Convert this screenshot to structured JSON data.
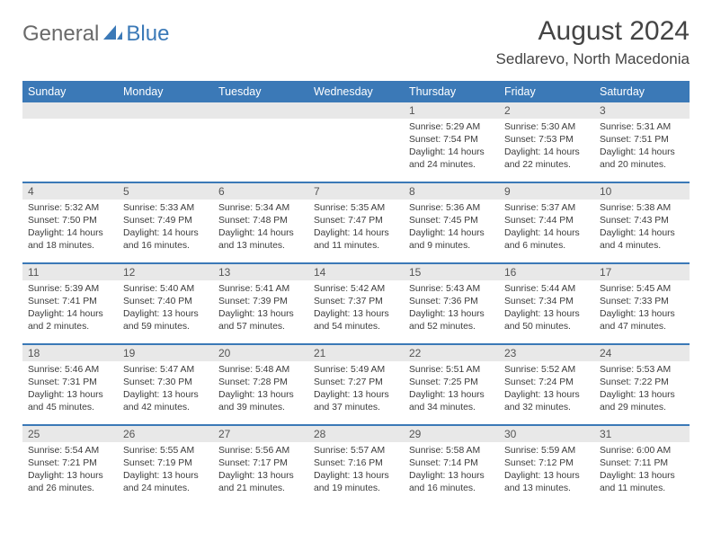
{
  "brand": {
    "part1": "General",
    "part2": "Blue"
  },
  "title": "August 2024",
  "location": "Sedlarevo, North Macedonia",
  "colors": {
    "header_bg": "#3b79b7",
    "header_text": "#ffffff",
    "date_band_bg": "#e8e8e8",
    "text": "#3c3c3c",
    "title_text": "#444444",
    "logo_gray": "#6a6a6a",
    "logo_blue": "#3b79b7"
  },
  "day_names": [
    "Sunday",
    "Monday",
    "Tuesday",
    "Wednesday",
    "Thursday",
    "Friday",
    "Saturday"
  ],
  "weeks": [
    [
      {
        "date": "",
        "sunrise": "",
        "sunset": "",
        "daylight": ""
      },
      {
        "date": "",
        "sunrise": "",
        "sunset": "",
        "daylight": ""
      },
      {
        "date": "",
        "sunrise": "",
        "sunset": "",
        "daylight": ""
      },
      {
        "date": "",
        "sunrise": "",
        "sunset": "",
        "daylight": ""
      },
      {
        "date": "1",
        "sunrise": "Sunrise: 5:29 AM",
        "sunset": "Sunset: 7:54 PM",
        "daylight": "Daylight: 14 hours and 24 minutes."
      },
      {
        "date": "2",
        "sunrise": "Sunrise: 5:30 AM",
        "sunset": "Sunset: 7:53 PM",
        "daylight": "Daylight: 14 hours and 22 minutes."
      },
      {
        "date": "3",
        "sunrise": "Sunrise: 5:31 AM",
        "sunset": "Sunset: 7:51 PM",
        "daylight": "Daylight: 14 hours and 20 minutes."
      }
    ],
    [
      {
        "date": "4",
        "sunrise": "Sunrise: 5:32 AM",
        "sunset": "Sunset: 7:50 PM",
        "daylight": "Daylight: 14 hours and 18 minutes."
      },
      {
        "date": "5",
        "sunrise": "Sunrise: 5:33 AM",
        "sunset": "Sunset: 7:49 PM",
        "daylight": "Daylight: 14 hours and 16 minutes."
      },
      {
        "date": "6",
        "sunrise": "Sunrise: 5:34 AM",
        "sunset": "Sunset: 7:48 PM",
        "daylight": "Daylight: 14 hours and 13 minutes."
      },
      {
        "date": "7",
        "sunrise": "Sunrise: 5:35 AM",
        "sunset": "Sunset: 7:47 PM",
        "daylight": "Daylight: 14 hours and 11 minutes."
      },
      {
        "date": "8",
        "sunrise": "Sunrise: 5:36 AM",
        "sunset": "Sunset: 7:45 PM",
        "daylight": "Daylight: 14 hours and 9 minutes."
      },
      {
        "date": "9",
        "sunrise": "Sunrise: 5:37 AM",
        "sunset": "Sunset: 7:44 PM",
        "daylight": "Daylight: 14 hours and 6 minutes."
      },
      {
        "date": "10",
        "sunrise": "Sunrise: 5:38 AM",
        "sunset": "Sunset: 7:43 PM",
        "daylight": "Daylight: 14 hours and 4 minutes."
      }
    ],
    [
      {
        "date": "11",
        "sunrise": "Sunrise: 5:39 AM",
        "sunset": "Sunset: 7:41 PM",
        "daylight": "Daylight: 14 hours and 2 minutes."
      },
      {
        "date": "12",
        "sunrise": "Sunrise: 5:40 AM",
        "sunset": "Sunset: 7:40 PM",
        "daylight": "Daylight: 13 hours and 59 minutes."
      },
      {
        "date": "13",
        "sunrise": "Sunrise: 5:41 AM",
        "sunset": "Sunset: 7:39 PM",
        "daylight": "Daylight: 13 hours and 57 minutes."
      },
      {
        "date": "14",
        "sunrise": "Sunrise: 5:42 AM",
        "sunset": "Sunset: 7:37 PM",
        "daylight": "Daylight: 13 hours and 54 minutes."
      },
      {
        "date": "15",
        "sunrise": "Sunrise: 5:43 AM",
        "sunset": "Sunset: 7:36 PM",
        "daylight": "Daylight: 13 hours and 52 minutes."
      },
      {
        "date": "16",
        "sunrise": "Sunrise: 5:44 AM",
        "sunset": "Sunset: 7:34 PM",
        "daylight": "Daylight: 13 hours and 50 minutes."
      },
      {
        "date": "17",
        "sunrise": "Sunrise: 5:45 AM",
        "sunset": "Sunset: 7:33 PM",
        "daylight": "Daylight: 13 hours and 47 minutes."
      }
    ],
    [
      {
        "date": "18",
        "sunrise": "Sunrise: 5:46 AM",
        "sunset": "Sunset: 7:31 PM",
        "daylight": "Daylight: 13 hours and 45 minutes."
      },
      {
        "date": "19",
        "sunrise": "Sunrise: 5:47 AM",
        "sunset": "Sunset: 7:30 PM",
        "daylight": "Daylight: 13 hours and 42 minutes."
      },
      {
        "date": "20",
        "sunrise": "Sunrise: 5:48 AM",
        "sunset": "Sunset: 7:28 PM",
        "daylight": "Daylight: 13 hours and 39 minutes."
      },
      {
        "date": "21",
        "sunrise": "Sunrise: 5:49 AM",
        "sunset": "Sunset: 7:27 PM",
        "daylight": "Daylight: 13 hours and 37 minutes."
      },
      {
        "date": "22",
        "sunrise": "Sunrise: 5:51 AM",
        "sunset": "Sunset: 7:25 PM",
        "daylight": "Daylight: 13 hours and 34 minutes."
      },
      {
        "date": "23",
        "sunrise": "Sunrise: 5:52 AM",
        "sunset": "Sunset: 7:24 PM",
        "daylight": "Daylight: 13 hours and 32 minutes."
      },
      {
        "date": "24",
        "sunrise": "Sunrise: 5:53 AM",
        "sunset": "Sunset: 7:22 PM",
        "daylight": "Daylight: 13 hours and 29 minutes."
      }
    ],
    [
      {
        "date": "25",
        "sunrise": "Sunrise: 5:54 AM",
        "sunset": "Sunset: 7:21 PM",
        "daylight": "Daylight: 13 hours and 26 minutes."
      },
      {
        "date": "26",
        "sunrise": "Sunrise: 5:55 AM",
        "sunset": "Sunset: 7:19 PM",
        "daylight": "Daylight: 13 hours and 24 minutes."
      },
      {
        "date": "27",
        "sunrise": "Sunrise: 5:56 AM",
        "sunset": "Sunset: 7:17 PM",
        "daylight": "Daylight: 13 hours and 21 minutes."
      },
      {
        "date": "28",
        "sunrise": "Sunrise: 5:57 AM",
        "sunset": "Sunset: 7:16 PM",
        "daylight": "Daylight: 13 hours and 19 minutes."
      },
      {
        "date": "29",
        "sunrise": "Sunrise: 5:58 AM",
        "sunset": "Sunset: 7:14 PM",
        "daylight": "Daylight: 13 hours and 16 minutes."
      },
      {
        "date": "30",
        "sunrise": "Sunrise: 5:59 AM",
        "sunset": "Sunset: 7:12 PM",
        "daylight": "Daylight: 13 hours and 13 minutes."
      },
      {
        "date": "31",
        "sunrise": "Sunrise: 6:00 AM",
        "sunset": "Sunset: 7:11 PM",
        "daylight": "Daylight: 13 hours and 11 minutes."
      }
    ]
  ]
}
